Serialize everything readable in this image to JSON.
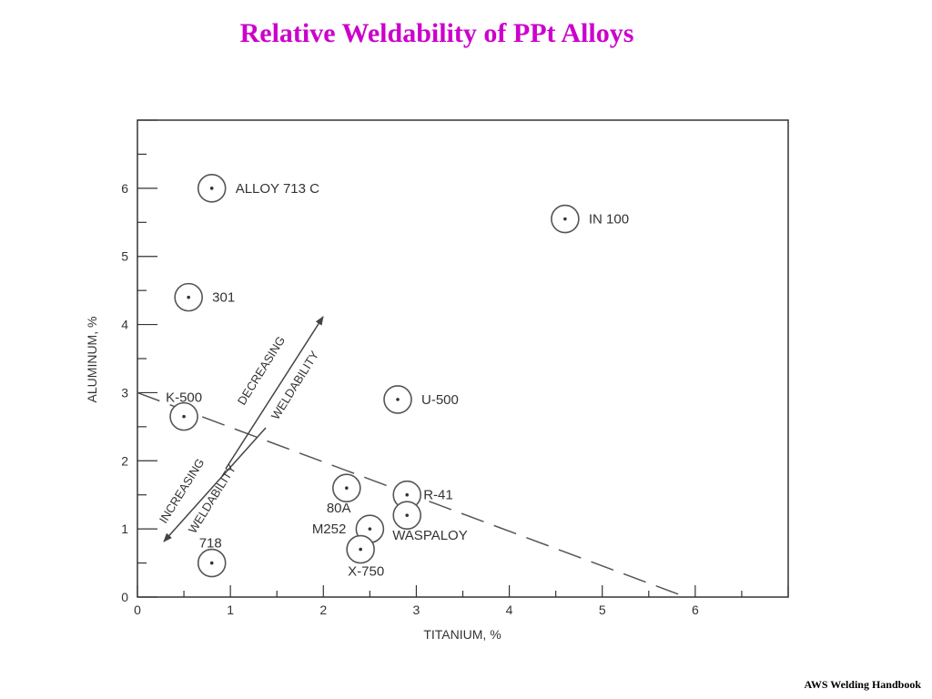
{
  "slide": {
    "title": "Relative Weldability of PPt Alloys",
    "title_color": "#cc00cc",
    "source": "AWS Welding Handbook"
  },
  "chart_data": {
    "type": "scatter",
    "title": "",
    "xlabel": "TITANIUM, %",
    "ylabel": "ALUMINUM, %",
    "xlim": [
      0,
      7
    ],
    "ylim": [
      0,
      7
    ],
    "x_ticks": [
      0,
      1,
      2,
      3,
      4,
      5,
      6
    ],
    "y_ticks": [
      0,
      1,
      2,
      3,
      4,
      5,
      6
    ],
    "grid": false,
    "series": [
      {
        "points": [
          {
            "label": "ALLOY 713 C",
            "x": 0.8,
            "y": 6.0
          },
          {
            "label": "IN 100",
            "x": 4.6,
            "y": 5.55
          },
          {
            "label": "301",
            "x": 0.55,
            "y": 4.4
          },
          {
            "label": "K-500",
            "x": 0.5,
            "y": 2.65
          },
          {
            "label": "U-500",
            "x": 2.8,
            "y": 2.9
          },
          {
            "label": "80A",
            "x": 2.25,
            "y": 1.6
          },
          {
            "label": "R-41",
            "x": 2.9,
            "y": 1.5
          },
          {
            "label": "WASPALOY",
            "x": 2.9,
            "y": 1.2
          },
          {
            "label": "M252",
            "x": 2.5,
            "y": 1.0
          },
          {
            "label": "X-750",
            "x": 2.4,
            "y": 0.7
          },
          {
            "label": "718",
            "x": 0.8,
            "y": 0.5
          }
        ]
      }
    ],
    "boundary_line": {
      "x1": 0,
      "y1": 3.0,
      "x2": 5.9,
      "y2": 0
    },
    "annotations": {
      "increasing": [
        "INCREASING",
        "WELDABILITY"
      ],
      "decreasing": [
        "DECREASING",
        "WELDABILITY"
      ]
    }
  }
}
